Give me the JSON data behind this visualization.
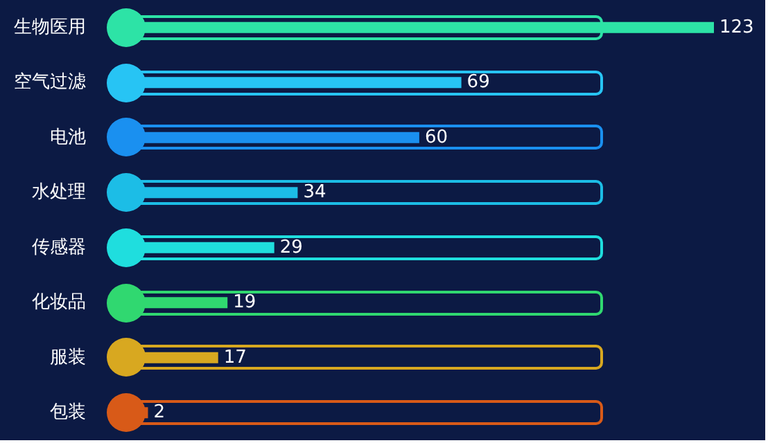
{
  "chart_data": {
    "type": "bar",
    "orientation": "horizontal",
    "data_labels": true,
    "grid": false,
    "categories": [
      "生物医用",
      "空气过滤",
      "电池",
      "水处理",
      "传感器",
      "化妆品",
      "服装",
      "包装"
    ],
    "values": [
      123,
      69,
      60,
      34,
      29,
      19,
      17,
      2
    ],
    "colors": [
      "#2de3a6",
      "#27c4f4",
      "#1a90f0",
      "#1cbde6",
      "#1fdede",
      "#30d870",
      "#d8a820",
      "#d85a18"
    ]
  }
}
